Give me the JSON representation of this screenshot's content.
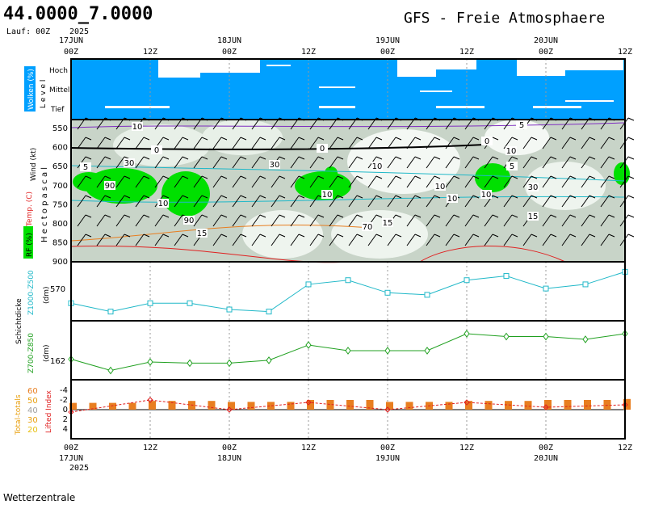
{
  "header": {
    "coords": "44.0000_7.0000",
    "run": "Lauf: 00Z",
    "title": "GFS - Freie Atmosphaere",
    "year_top": "2025",
    "year_bottom": "2025"
  },
  "footer": {
    "source": "Wetterzentrale"
  },
  "time_axis": {
    "ticks": [
      "00Z",
      "12Z",
      "00Z",
      "12Z",
      "00Z",
      "12Z",
      "00Z",
      "12Z"
    ],
    "dates": [
      "17JUN",
      "18JUN",
      "19JUN",
      "20JUN"
    ]
  },
  "panels": {
    "clouds": {
      "label_box": "Wolken (%)",
      "level_word": "L e v e l",
      "levels": [
        "Hoch",
        "Mittel",
        "Tief"
      ]
    },
    "atmosphere": {
      "y_title": "H e c t o p a s c a l",
      "wind_label": "Wind (kt)",
      "temp_label": "Temp. (C)",
      "rh_label": "RF (%)",
      "pressure_ticks": [
        "550",
        "600",
        "650",
        "700",
        "750",
        "800",
        "850",
        "900"
      ],
      "contour_labels": [
        "0",
        "0",
        "0",
        "5",
        "30",
        "90",
        "10",
        "10",
        "90",
        "15",
        "10",
        "10",
        "5",
        "30",
        "70",
        "15",
        "10",
        "15",
        "5",
        "10",
        "10",
        "10",
        "30"
      ]
    },
    "thickness": {
      "side_label": "Schichtdicke",
      "z1000_label": "Z1000-Z500",
      "z700_label": "Z700-Z850",
      "unit": "(dm)",
      "tick_z1000": "570",
      "tick_z700": "162"
    },
    "index": {
      "tt_label": "Total-totals",
      "li_label": "Lifted Index",
      "tt_ticks": [
        "60",
        "50",
        "40",
        "30",
        "20"
      ],
      "li_ticks": [
        "-4",
        "-2",
        "0",
        "2",
        "4"
      ]
    }
  },
  "colors": {
    "cloud_blue": "#00a0ff",
    "rh_green": "#00e000",
    "thickness1": "#20b8c8",
    "thickness2": "#20a020",
    "bar_orange": "#e87e20",
    "li_red": "#e02020"
  },
  "chart_data": [
    {
      "type": "line",
      "title": "Z1000-Z500",
      "ylabel": "(dm)",
      "x": [
        "17JUN 00Z",
        "17JUN 06Z",
        "17JUN 12Z",
        "17JUN 18Z",
        "18JUN 00Z",
        "18JUN 06Z",
        "18JUN 12Z",
        "18JUN 18Z",
        "19JUN 00Z",
        "19JUN 06Z",
        "19JUN 12Z",
        "19JUN 18Z",
        "20JUN 00Z",
        "20JUN 06Z",
        "20JUN 12Z"
      ],
      "series": [
        {
          "name": "Z1000-Z500",
          "values": [
            563,
            559,
            563,
            563,
            560,
            559,
            572,
            574,
            568,
            567,
            574,
            576,
            570,
            572,
            578
          ]
        }
      ],
      "y_ticks": [
        570
      ]
    },
    {
      "type": "line",
      "title": "Z700-Z850",
      "ylabel": "(dm)",
      "x": [
        "17JUN 00Z",
        "17JUN 06Z",
        "17JUN 12Z",
        "17JUN 18Z",
        "18JUN 00Z",
        "18JUN 06Z",
        "18JUN 12Z",
        "18JUN 18Z",
        "19JUN 00Z",
        "19JUN 06Z",
        "19JUN 12Z",
        "19JUN 18Z",
        "20JUN 00Z",
        "20JUN 06Z",
        "20JUN 12Z"
      ],
      "series": [
        {
          "name": "Z700-Z850",
          "values": [
            162.5,
            160.5,
            162,
            161.8,
            161.8,
            162.3,
            165,
            164,
            164,
            164,
            167,
            166.5,
            166.5,
            166,
            167
          ]
        }
      ],
      "y_ticks": [
        162
      ]
    },
    {
      "type": "bar",
      "title": "Total-totals / Lifted Index",
      "x": [
        "17JUN 00Z",
        "17JUN 12Z",
        "18JUN 00Z",
        "18JUN 12Z",
        "19JUN 00Z",
        "19JUN 12Z",
        "20JUN 00Z",
        "20JUN 12Z"
      ],
      "series": [
        {
          "name": "Total-totals",
          "values": [
            47,
            49,
            48,
            50,
            48,
            49,
            50,
            51
          ]
        },
        {
          "name": "Lifted Index",
          "values": [
            0.5,
            -2,
            0,
            -1.5,
            0,
            -1.5,
            -0.5,
            -1
          ]
        }
      ]
    }
  ]
}
